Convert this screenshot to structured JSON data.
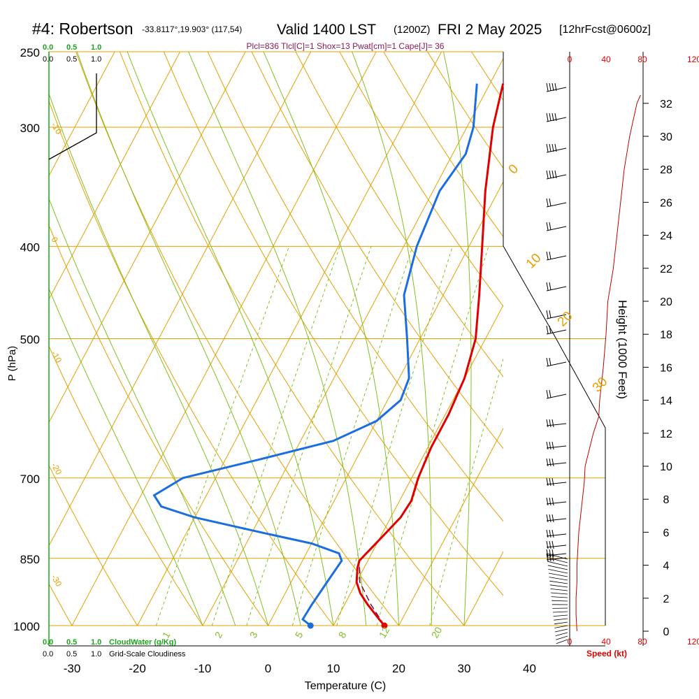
{
  "header": {
    "station": "#4: Robertson",
    "coords": "-33.8117°,19.903° (117,54)",
    "valid": "Valid 1400 LST",
    "zulu": "(1200Z)",
    "date": "FRI 2 May 2025",
    "forecast": "[12hrFcst@0600z]"
  },
  "indices": "Plcl=836 Tlcl[C]=1 Shox=13 Pwat[cm]=1 Cape[J]= 36",
  "cloud_water": {
    "ticks": [
      "0.0",
      "0.5",
      "1.0"
    ],
    "label": "CloudWater (g/Kg)"
  },
  "cloudiness": {
    "ticks": [
      "0.0",
      "0.5",
      "1.0"
    ],
    "label": "Grid-Scale Cloudiness"
  },
  "colors": {
    "temperature": "#e00000",
    "dewpoint": "#1a6ee0",
    "isotherm": "#e6a000",
    "dry_adiabat": "#e6a000",
    "moist_adiabat": "#80c020",
    "mixing_ratio": "#80c020",
    "wind_speed": "#c00000"
  },
  "chart_data": {
    "type": "line",
    "xlabel": "Temperature (C)",
    "ylabel": "P (hPa)",
    "y2label": "Height (1000 Feet)",
    "speed_label": "Speed (kt)",
    "x_ticks": [
      "-30",
      "-20",
      "-10",
      "0",
      "10",
      "20",
      "30",
      "40"
    ],
    "x_values": [
      -30,
      -20,
      -10,
      0,
      10,
      20,
      30,
      40
    ],
    "xlim": [
      -34,
      46
    ],
    "pressure_ticks": [
      "250",
      "300",
      "400",
      "500",
      "700",
      "850",
      "1000"
    ],
    "pressure_values": [
      250,
      300,
      400,
      500,
      700,
      850,
      1000
    ],
    "ylim": [
      1000,
      250
    ],
    "height_ticks": [
      "0",
      "2",
      "4",
      "6",
      "8",
      "10",
      "12",
      "14",
      "16",
      "18",
      "20",
      "22",
      "24",
      "26",
      "28",
      "30",
      "32"
    ],
    "height_values": [
      0,
      2,
      4,
      6,
      8,
      10,
      12,
      14,
      16,
      18,
      20,
      22,
      24,
      26,
      28,
      30,
      32
    ],
    "speed_ticks": [
      "0",
      "40",
      "80",
      "120"
    ],
    "speed_values": [
      0,
      40,
      80,
      120
    ],
    "isotherm_labels": [
      "0",
      "10",
      "20",
      "30"
    ],
    "left_isotherm_labels": [
      "-10",
      "0",
      "-10",
      "-20",
      "-30"
    ],
    "mixing_ratio_labels": [
      "1",
      "2",
      "3",
      "5",
      "8",
      "12",
      "20"
    ],
    "series": [
      {
        "name": "Temperature",
        "points": [
          [
            1000,
            17.8
          ],
          [
            985,
            16.5
          ],
          [
            950,
            13.5
          ],
          [
            925,
            11.5
          ],
          [
            900,
            10.0
          ],
          [
            870,
            9.0
          ],
          [
            855,
            8.7
          ],
          [
            830,
            9.5
          ],
          [
            800,
            10.5
          ],
          [
            770,
            11.5
          ],
          [
            740,
            11.8
          ],
          [
            700,
            11.0
          ],
          [
            650,
            10.5
          ],
          [
            600,
            10.5
          ],
          [
            550,
            10.0
          ],
          [
            500,
            8.5
          ],
          [
            450,
            5.5
          ],
          [
            400,
            2.0
          ],
          [
            350,
            -2.0
          ],
          [
            300,
            -6.0
          ],
          [
            270,
            -8.0
          ]
        ]
      },
      {
        "name": "Dewpoint",
        "points": [
          [
            1000,
            6.5
          ],
          [
            985,
            4.8
          ],
          [
            950,
            5.0
          ],
          [
            900,
            5.5
          ],
          [
            855,
            6.0
          ],
          [
            840,
            5.0
          ],
          [
            820,
            0.0
          ],
          [
            800,
            -8.0
          ],
          [
            770,
            -20.0
          ],
          [
            750,
            -26.0
          ],
          [
            730,
            -28.0
          ],
          [
            700,
            -25.0
          ],
          [
            670,
            -15.0
          ],
          [
            640,
            -5.0
          ],
          [
            610,
            0.0
          ],
          [
            580,
            2.0
          ],
          [
            550,
            1.5
          ],
          [
            500,
            -2.0
          ],
          [
            450,
            -6.0
          ],
          [
            400,
            -8.0
          ],
          [
            350,
            -9.0
          ],
          [
            320,
            -8.0
          ],
          [
            300,
            -9.0
          ],
          [
            270,
            -12.0
          ]
        ]
      },
      {
        "name": "Parcel",
        "points": [
          [
            1000,
            17.8
          ],
          [
            950,
            14.0
          ],
          [
            900,
            10.5
          ],
          [
            855,
            8.7
          ]
        ]
      }
    ],
    "wind_speed_profile": [
      [
        0,
        8
      ],
      [
        1,
        7
      ],
      [
        2,
        7
      ],
      [
        3,
        8
      ],
      [
        4,
        8
      ],
      [
        5,
        9
      ],
      [
        6,
        10
      ],
      [
        7,
        12
      ],
      [
        8,
        14
      ],
      [
        9,
        16
      ],
      [
        10,
        17
      ],
      [
        12,
        26
      ],
      [
        13,
        32
      ],
      [
        14,
        33
      ],
      [
        16,
        37
      ],
      [
        18,
        40
      ],
      [
        20,
        42
      ],
      [
        22,
        48
      ],
      [
        24,
        52
      ],
      [
        26,
        56
      ],
      [
        28,
        60
      ],
      [
        30,
        66
      ],
      [
        32,
        74
      ],
      [
        32.5,
        78
      ]
    ],
    "surface_temperature": 17.8,
    "surface_dewpoint": 6.5
  }
}
